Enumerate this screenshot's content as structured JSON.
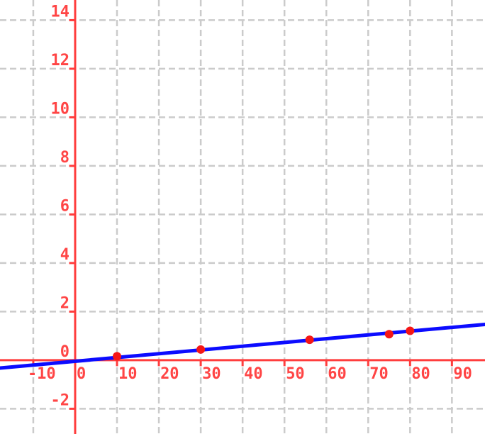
{
  "chart_data": {
    "type": "scatter",
    "title": "",
    "xlabel": "",
    "ylabel": "",
    "grid": true,
    "legend_position": "none",
    "x_ticks": [
      -10,
      0,
      10,
      20,
      30,
      40,
      50,
      60,
      70,
      80,
      90
    ],
    "y_ticks": [
      -2,
      0,
      2,
      4,
      6,
      8,
      10,
      12,
      14
    ],
    "x_range": [
      -17.95,
      97.9
    ],
    "y_range": [
      -3.04,
      14.83
    ],
    "points": [
      {
        "x": 10,
        "y": 0.16
      },
      {
        "x": 30,
        "y": 0.44
      },
      {
        "x": 56,
        "y": 0.84
      },
      {
        "x": 75,
        "y": 1.07
      },
      {
        "x": 80,
        "y": 1.21
      }
    ],
    "trend_line": {
      "slope": 0.0155,
      "intercept": -0.045
    },
    "colors": {
      "background": "#ffffff",
      "axis": "#ff3d3d",
      "tick_label": "#ff4545",
      "grid": "#cbcbcb",
      "trend_line": "#0c0cff",
      "point": "#f51616"
    },
    "style": {
      "axis_width": 3,
      "grid_width": 2.5,
      "grid_dash": "9 5",
      "line_width": 5,
      "point_radius": 6,
      "tick_len": 7
    }
  }
}
